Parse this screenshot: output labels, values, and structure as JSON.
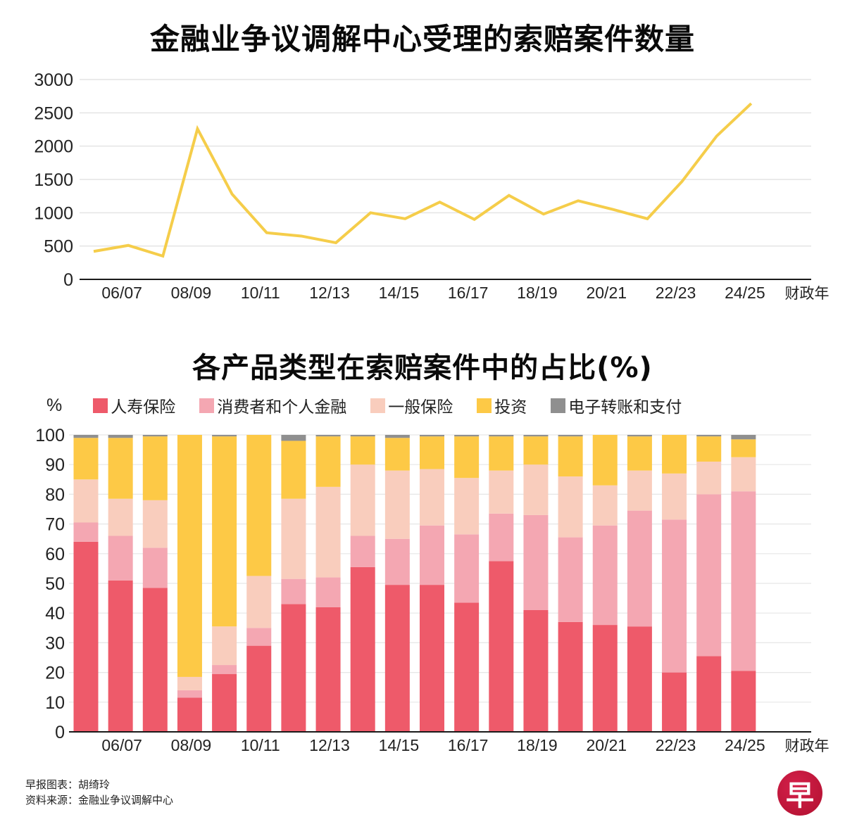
{
  "chart_data": [
    {
      "type": "line",
      "title": "金融业争议调解中心受理的索赔案件数量",
      "xlabel": "财政年",
      "ylabel": "",
      "ylim": [
        0,
        3000
      ],
      "yticks": [
        "0",
        "500",
        "1000",
        "1500",
        "2000",
        "2500",
        "3000"
      ],
      "ytick_values": [
        0,
        500,
        1000,
        1500,
        2000,
        2500,
        3000
      ],
      "x": [
        "05/06",
        "06/07",
        "07/08",
        "08/09",
        "09/10",
        "10/11",
        "11/12",
        "12/13",
        "13/14",
        "14/15",
        "15/16",
        "16/17",
        "17/18",
        "18/19",
        "19/20",
        "20/21",
        "21/22",
        "22/23",
        "23/24",
        "24/25"
      ],
      "xtick_labels": [
        "06/07",
        "08/09",
        "10/11",
        "12/13",
        "14/15",
        "16/17",
        "18/19",
        "20/21",
        "22/23",
        "24/25"
      ],
      "grid": true,
      "series": [
        {
          "name": "索赔案件数量",
          "color": "#f5cd4a",
          "values": [
            420,
            510,
            350,
            2260,
            1280,
            700,
            650,
            550,
            1000,
            910,
            1160,
            900,
            1260,
            980,
            1180,
            1050,
            910,
            1470,
            2150,
            2640
          ]
        }
      ]
    },
    {
      "type": "bar",
      "stacked": true,
      "title": "各产品类型在索赔案件中的占比(%)",
      "ylabel": "%",
      "xlabel": "财政年",
      "ylim": [
        0,
        100
      ],
      "yticks": [
        "0",
        "10",
        "20",
        "30",
        "40",
        "50",
        "60",
        "70",
        "80",
        "90",
        "100"
      ],
      "ytick_values": [
        0,
        10,
        20,
        30,
        40,
        50,
        60,
        70,
        80,
        90,
        100
      ],
      "categories": [
        "05/06",
        "06/07",
        "07/08",
        "08/09",
        "09/10",
        "10/11",
        "11/12",
        "12/13",
        "13/14",
        "14/15",
        "15/16",
        "16/17",
        "17/18",
        "18/19",
        "19/20",
        "20/21",
        "21/22",
        "22/23",
        "23/24",
        "24/25"
      ],
      "xtick_labels": [
        "06/07",
        "08/09",
        "10/11",
        "12/13",
        "14/15",
        "16/17",
        "18/19",
        "20/21",
        "22/23",
        "24/25"
      ],
      "grid": true,
      "legend_position": "top",
      "series": [
        {
          "name": "人寿保险",
          "color": "#ee5a6a",
          "values": [
            64,
            51,
            48.5,
            11.5,
            19.5,
            29,
            43,
            42,
            55.5,
            49.5,
            49.5,
            43.5,
            57.5,
            41,
            37,
            36,
            35.5,
            20,
            25.5,
            20.5
          ]
        },
        {
          "name": "消费者和个人金融",
          "color": "#f4a7b2",
          "values": [
            6.5,
            15,
            13.5,
            2.5,
            3,
            6,
            8.5,
            10,
            10.5,
            15.5,
            20,
            23,
            16,
            32,
            28.5,
            33.5,
            39,
            51.5,
            54.5,
            60.5
          ]
        },
        {
          "name": "一般保险",
          "color": "#f9cdbd",
          "values": [
            14.5,
            12.5,
            16,
            4.5,
            13,
            17.5,
            27,
            30.5,
            24,
            23,
            19,
            19,
            14.5,
            17,
            20.5,
            13.5,
            13.5,
            15.5,
            11,
            11.5
          ]
        },
        {
          "name": "投资",
          "color": "#fdc946",
          "values": [
            14,
            20.5,
            21.5,
            81.5,
            64,
            47.5,
            19.5,
            17,
            9.5,
            11,
            11,
            14,
            11.5,
            9.5,
            13.5,
            17,
            11.5,
            13,
            8.5,
            6
          ]
        },
        {
          "name": "电子转账和支付",
          "color": "#8f8f8f",
          "values": [
            1,
            1,
            0.5,
            0,
            0.5,
            0,
            2,
            0.5,
            0.5,
            1,
            0.5,
            0.5,
            0.5,
            0.5,
            0.5,
            0,
            0.5,
            0,
            0.5,
            1.5
          ]
        }
      ]
    }
  ],
  "page": {
    "title1": "金融业争议调解中心受理的索赔案件数量",
    "title2": "各产品类型在索赔案件中的占比(%)",
    "legend_unit": "%",
    "x_axis_unit": "财政年",
    "credit_line1": "早报图表：胡绮玲",
    "credit_line2": "资料来源：金融业争议调解中心",
    "logo_char": "早"
  }
}
